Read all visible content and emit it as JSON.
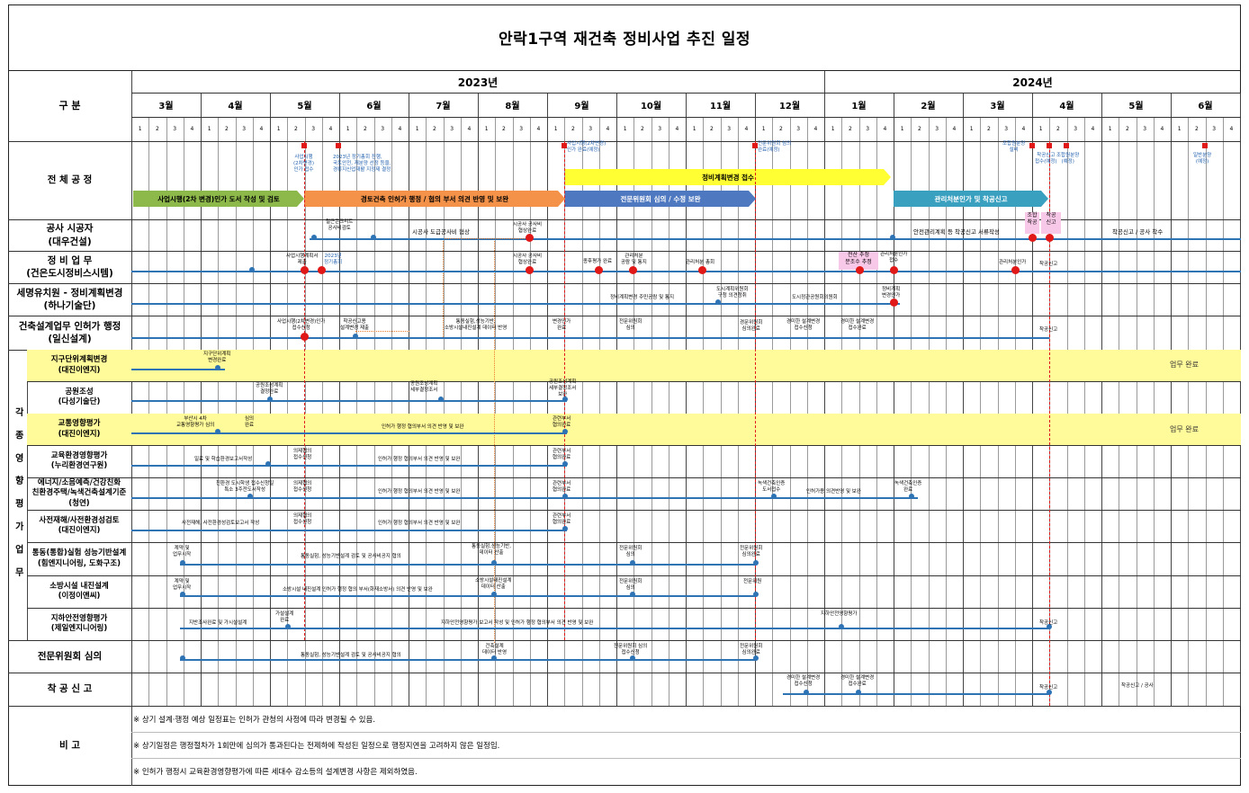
{
  "title": "안락1구역 재건축 정비사업 추진 일정",
  "header": {
    "category_label": "구 분",
    "years": [
      {
        "label": "2023년"
      },
      {
        "label": "2024년"
      }
    ],
    "months": [
      "3월",
      "4월",
      "5월",
      "6월",
      "7월",
      "8월",
      "9월",
      "10월",
      "11월",
      "12월",
      "1월",
      "2월",
      "3월",
      "4월",
      "5월",
      "6월"
    ],
    "weeks": [
      "1",
      "2",
      "3",
      "4"
    ]
  },
  "rows": {
    "overall": "전 체 공 정",
    "construction": [
      "공사 시공자",
      "(대우건설)"
    ],
    "management": [
      "정 비 업 무",
      "(건은도시정비스시템)"
    ],
    "tax": [
      "세명유치원 - 정비계획변경",
      "(하나기술단)"
    ],
    "architecture": [
      "건축설계업무 인허가 행정",
      "(일신설계)"
    ],
    "side_label": "각 종 영 향 평 가 업 무",
    "sub": [
      [
        "지구단위계획변경",
        "(대진이엔지)"
      ],
      [
        "공원조성",
        "(다성기술단)"
      ],
      [
        "교통영향평가",
        "(대진이엔지)"
      ],
      [
        "교육환경영향평가",
        "(누리환경연구원)"
      ],
      [
        "에너지/소음예측/건강친화",
        "친환경주택/녹색건축설계기준",
        "(청연)"
      ],
      [
        "사전재해/사전환경성검토",
        "(대진이엔지)"
      ],
      [
        "통동(통합)실험 성능기반설계",
        "(힘엔지니어링, 도화구조)"
      ],
      [
        "소방시설 내진설계",
        "(이정이앤씨)"
      ],
      [
        "지하안전영향평가",
        "(제일엔지니어링)"
      ]
    ],
    "committee": "전문위원회 심의",
    "start_report": "착 공 신 고",
    "remarks": "비 고"
  },
  "arrows": {
    "green": "사업시행(2차 변경)인가 도서 작성 및 검토",
    "orange": "경토건축 인허가 행정 / 협의 부서 의견 반영 및 보완",
    "blue": "전문위원회 심의 / 수정 보완",
    "yellow": "정비계획변경 접수",
    "teal": "관리처분인가 및 착공신고"
  },
  "annotations": {
    "a1": "사업시행\n(2차변경)\n인가 접수",
    "a2": "2023년 정기총회 진행,\n국토안전, 재분양 선정 등을,\n경류지신업재활 지정제 결정",
    "a3": "사업시행(2차변경)\n인가 완료(예정)",
    "a4": "전문위원회 심의\n완료(예정)",
    "a5": "조합원분양\n설비",
    "a6": "착공신고\n접수(예정)",
    "a7": "조합원분양\n(예정)",
    "a8": "일반분양\n(예정)",
    "c1": "철근콘크리트\n공사비검토",
    "c2": "시공사 도급공사비 협상",
    "c3": "시공사 공사비\n협상완료",
    "c4": "안전관리계획 등 착공신고 서류작성",
    "c5": "착공신고 / 공사 착수",
    "c6": "조합\n착공",
    "c7": "착공\n신고",
    "m1": "사업시행계획서\n제출",
    "m2": "2023년\n정기총회",
    "m3": "시공사 공사비\n협상완료",
    "m4": "종후평가 완료",
    "m5": "관리처분\n공람 및 통지",
    "m6": "관리처분 총회",
    "m7": "전산 추정\n분조수 추정",
    "m8": "관리처분인가\n접수",
    "m9": "관리처분인가",
    "m10": "착공신고",
    "t1": "정비계획변경 주민공람 및 통지",
    "t2": "도시계획위원회\n구청 의견청취",
    "t3": "도시정관공원회의원회",
    "t4": "정비계획\n변경인가",
    "r1": "사업시행(2차변경)인가\n접수신청",
    "r2": "착공신고용\n설계변경 제출",
    "r3": "통동실험,성능기반,\n소방시설내진설계 데이터 반영",
    "r4": "변경인가\n완료",
    "r5": "전문위원회\n심의",
    "r6": "경문위원회\n심의완료",
    "r7": "경미한 설계변경\n접수신청",
    "r8": "경미한 설계변경\n접수완료",
    "r9": "착공신고",
    "s1": "지구단위계획\n변경완료",
    "s2": "공원조성계획\n결정완료",
    "s3": "공원조성계획\n세부결정조서",
    "s4": "공원조성계획\n세부결정조서\n보완",
    "s5": "부산시 4차\n교통영향평가 심의",
    "s6": "심의\n완료",
    "s7": "인허가 행정 협의부서 의견 반영 및 보완",
    "s8": "관련부서\n협의완료",
    "e1": "일료 및 학습환경보고서작성",
    "e2": "의제협의\n접수신청",
    "e3": "인허가 행정 협의부서 의견 반영 및 보완",
    "e4": "관련부서\n협의완료",
    "g1": "친환경 도시학생 접수신청일\n특소 3주전도서작성",
    "g2": "의제협의\n접수신청",
    "g3": "인허가 행정 협의부서 의견 반영 및 보완",
    "g4": "관련부서\n협의완료",
    "g5": "녹색건축인증\n도서접수",
    "g6": "인허가용 의견반영 및 보완",
    "g7": "녹색건축인증\n완료",
    "d1": "사전재해, 사전환경성검토보고서 작성",
    "d2": "의제협의\n접수신청",
    "d3": "인허가 행정 협의부서 의견 반영 및 보완",
    "d4": "관련부서\n협의완료",
    "p1": "계약 및\n업무시작",
    "p2": "통동실험, 성능기반설계 검토 및 공사비공지 협의",
    "p3": "통동실험,성능기반,\n데이터 산출",
    "p4": "전문위원회\n심의",
    "p5": "전문위원회\n심의완료",
    "f1": "계약 및\n업무시작",
    "f2": "소방시설 내진설계 인허가 행정 협의 부서(화재소방서) 의견 반영 및 보완",
    "f3": "소방시설내진설계\n데이터 산출",
    "f4": "전문위원회\n심의",
    "f5": "전문위원",
    "u1": "지반조사완료 및 가시설설계",
    "u2": "가설설계\n완료",
    "u3": "지하안전영향평가 보고서 작성 및 인허가 행정 협의부서 의견 반영 및 보완",
    "u4": "지하안전영향평가",
    "u5": "착공신고",
    "w1": "통동실험, 성능기반설계 검토 및 공사비공지 협의",
    "w2": "건축설계\n데이터 반영",
    "w3": "전문위원회 심의\n접수신청",
    "w4": "전문위원회\n심의완료",
    "k1": "경미한 설계변경\n접수신청",
    "k2": "경미한 설계변경\n접수완료",
    "k3": "착공신고",
    "k4": "착공신고 / 공사"
  },
  "done_label": "업무 완료",
  "notes": [
    "※ 상기 설계·행정 예상 일정표는 인허가 관청의 사정에 따라 변경될 수 있음.",
    "※ 상기일정은 행정절차가 1회만에 심의가 통과된다는 전제하에 작성된 일정으로 행정지연을 고려하지 않은 일정임.",
    "※ 인허가 행정시 교육환경영향평가에 따른 세대수 감소등의 설계변경 사항은 제외하였음."
  ],
  "colors": {
    "highlight": "#fffa9a",
    "timeline": "#2e74b5",
    "milestone": "#e01818"
  }
}
